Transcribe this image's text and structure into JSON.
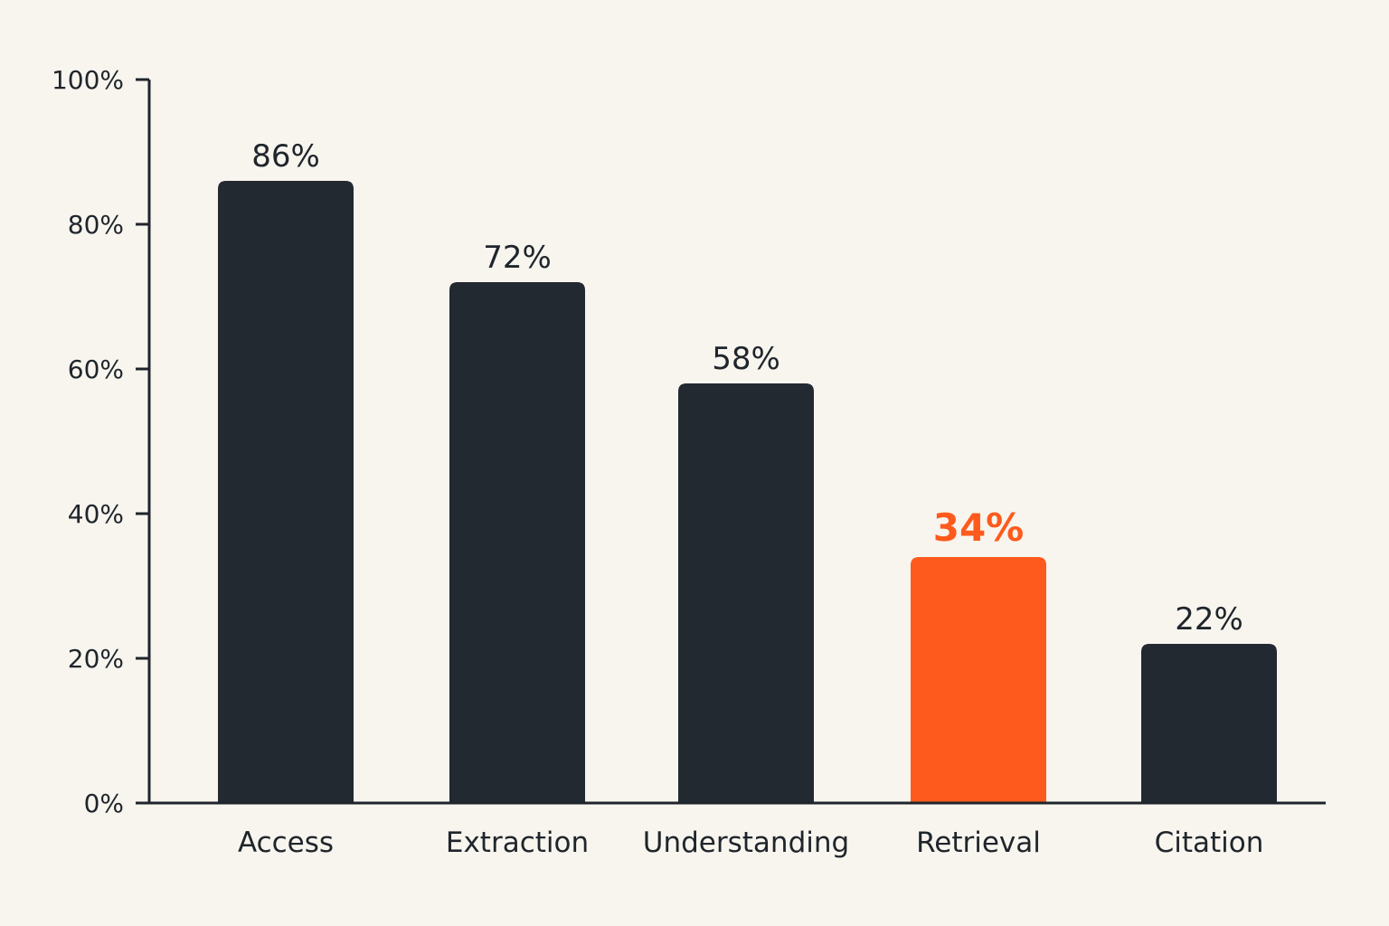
{
  "colors": {
    "background": "#f8f5ef",
    "bar": "#232931",
    "highlight": "#fe5a1d",
    "axis": "#1f252b",
    "text": "#1f252b"
  },
  "chart_data": {
    "type": "bar",
    "title": "",
    "xlabel": "",
    "ylabel": "",
    "categories": [
      "Access",
      "Extraction",
      "Understanding",
      "Retrieval",
      "Citation"
    ],
    "values": [
      86,
      72,
      58,
      34,
      22
    ],
    "value_labels": [
      "86%",
      "72%",
      "58%",
      "34%",
      "22%"
    ],
    "highlight_index": 3,
    "ylim": [
      0,
      100
    ],
    "yticks": [
      0,
      20,
      40,
      60,
      80,
      100
    ],
    "ytick_labels": [
      "0%",
      "20%",
      "40%",
      "60%",
      "80%",
      "100%"
    ],
    "grid": false,
    "legend": "none"
  }
}
